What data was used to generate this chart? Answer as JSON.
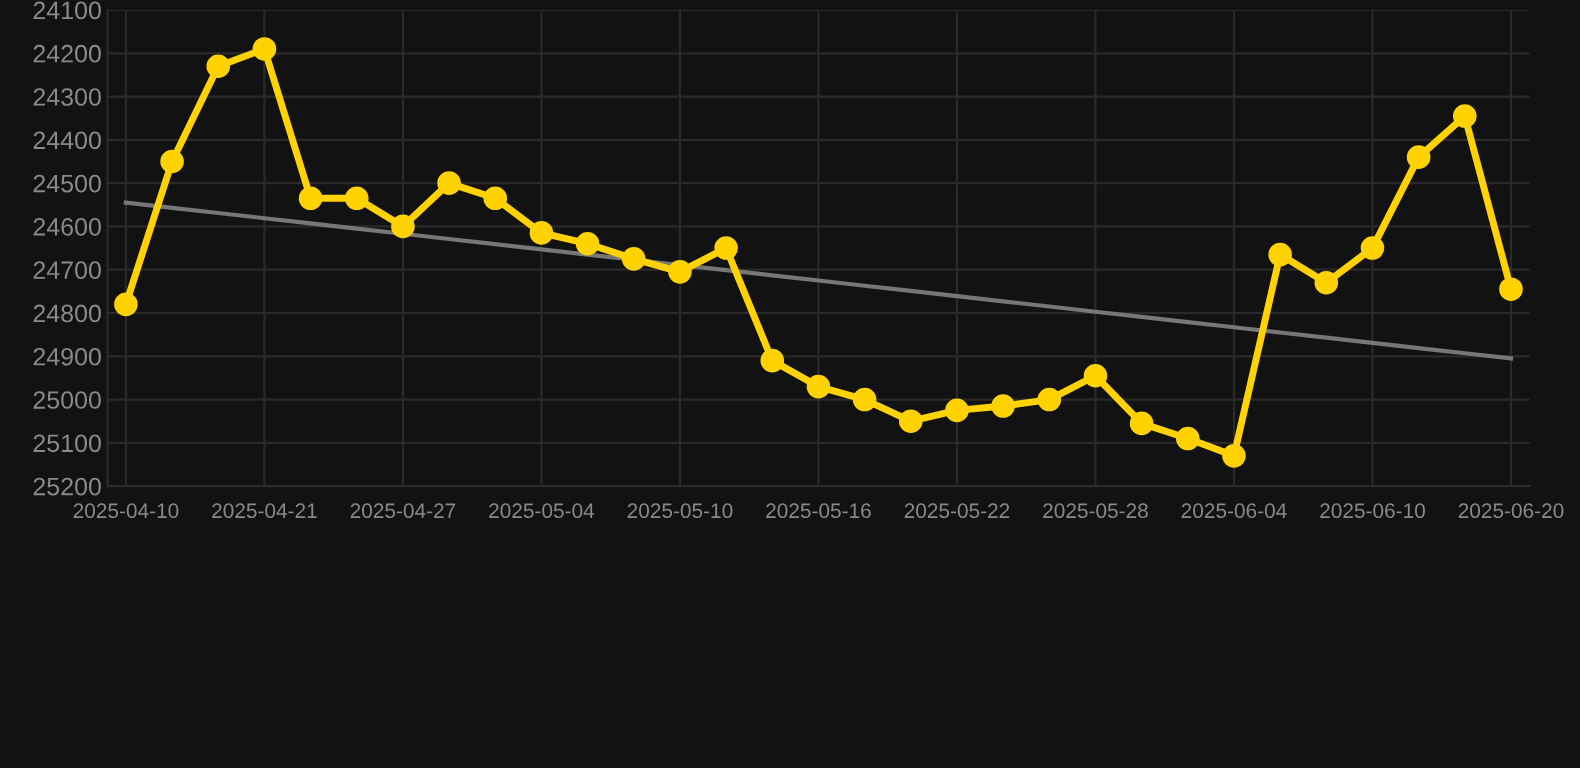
{
  "chart_data": {
    "type": "line",
    "categories": [
      "2025-04-10",
      null,
      null,
      "2025-04-21",
      null,
      null,
      "2025-04-27",
      null,
      null,
      "2025-05-04",
      null,
      null,
      "2025-05-10",
      null,
      null,
      "2025-05-16",
      null,
      null,
      "2025-05-22",
      null,
      null,
      "2025-05-28",
      null,
      null,
      "2025-06-04",
      null,
      null,
      "2025-06-10",
      null,
      null,
      "2025-06-20"
    ],
    "series": [
      {
        "color": "#ffd200",
        "marker": "circle",
        "values": [
          24780,
          24450,
          24230,
          24190,
          24535,
          24535,
          24600,
          24500,
          24535,
          24615,
          24640,
          24675,
          24705,
          24650,
          24910,
          24970,
          25000,
          25050,
          25025,
          25015,
          25000,
          24945,
          25055,
          25090,
          25130,
          24665,
          24730,
          24650,
          24440,
          24345,
          24745
        ]
      },
      {
        "type": "line",
        "color": "#777777",
        "marker": "none",
        "values": [
          24545,
          24557,
          24569,
          24581,
          24593,
          24605,
          24617,
          24629,
          24641,
          24653,
          24665,
          24677,
          24689,
          24701,
          24713,
          24725,
          24737,
          24749,
          24761,
          24773,
          24785,
          24797,
          24809,
          24821,
          24833,
          24845,
          24857,
          24869,
          24881,
          24893,
          24905
        ]
      }
    ],
    "ylim": [
      25200,
      24100
    ],
    "yticks": [
      24100,
      24200,
      24300,
      24400,
      24500,
      24600,
      24700,
      24800,
      24900,
      25000,
      25100,
      25200
    ],
    "grid": true
  }
}
